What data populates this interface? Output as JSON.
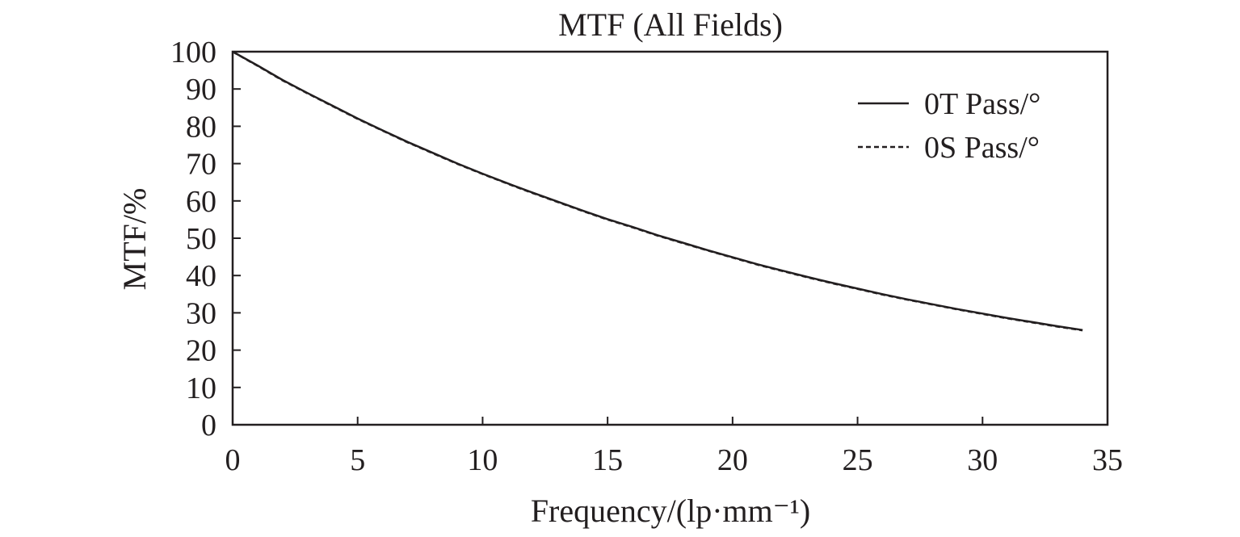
{
  "chart_data": {
    "type": "line",
    "title": "MTF (All Fields)",
    "xlabel": "Frequency/(lp·mm⁻¹)",
    "ylabel": "MTF/%",
    "xlim": [
      0,
      35
    ],
    "ylim": [
      0,
      100
    ],
    "x_ticks": [
      0,
      5,
      10,
      15,
      20,
      25,
      30,
      35
    ],
    "y_ticks": [
      0,
      10,
      20,
      30,
      40,
      50,
      60,
      70,
      80,
      90,
      100
    ],
    "grid": false,
    "legend_position": "top-right",
    "series": [
      {
        "name": "0T Pass/°",
        "style": "solid",
        "x": [
          0,
          1,
          2,
          3,
          4,
          5,
          6,
          7,
          8,
          9,
          10,
          11,
          12,
          13,
          14,
          15,
          16,
          17,
          18,
          19,
          20,
          21,
          22,
          23,
          24,
          25,
          26,
          27,
          28,
          29,
          30,
          31,
          32,
          33,
          34
        ],
        "values": [
          100,
          96.3,
          92.4,
          88.9,
          85.5,
          82.1,
          78.9,
          75.8,
          72.9,
          70.0,
          67.3,
          64.7,
          62.2,
          59.8,
          57.4,
          55.1,
          53.0,
          50.8,
          48.8,
          46.8,
          44.9,
          43.0,
          41.3,
          39.6,
          38.0,
          36.5,
          35.0,
          33.6,
          32.3,
          31.0,
          29.8,
          28.6,
          27.5,
          26.4,
          25.4
        ]
      },
      {
        "name": "0S Pass/°",
        "style": "dashed",
        "x": [
          0,
          1,
          2,
          3,
          4,
          5,
          6,
          7,
          8,
          9,
          10,
          11,
          12,
          13,
          14,
          15,
          16,
          17,
          18,
          19,
          20,
          21,
          22,
          23,
          24,
          25,
          26,
          27,
          28,
          29,
          30,
          31,
          32,
          33,
          34
        ],
        "values": [
          100,
          96.2,
          92.3,
          88.8,
          85.4,
          82.0,
          78.8,
          75.7,
          72.8,
          69.9,
          67.2,
          64.6,
          62.1,
          59.7,
          57.3,
          55.0,
          52.9,
          50.7,
          48.7,
          46.7,
          44.8,
          42.9,
          41.2,
          39.5,
          37.9,
          36.4,
          34.9,
          33.5,
          32.2,
          30.9,
          29.7,
          28.5,
          27.4,
          26.3,
          25.3
        ]
      }
    ]
  },
  "colors": {
    "line": "#231f20",
    "axis": "#231f20"
  }
}
